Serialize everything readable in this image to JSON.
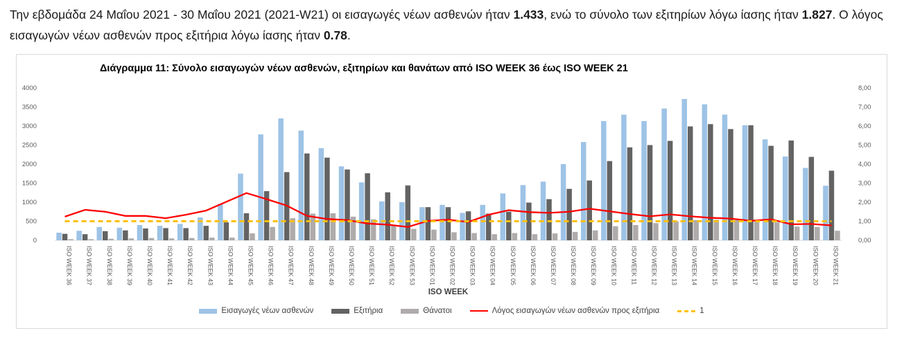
{
  "intro": {
    "p1": "Την εβδομάδα 24 Μαΐου 2021 - 30 Μαΐου 2021 (2021-W21) οι εισαγωγές νέων ασθενών ήταν ",
    "admissions": "1.433",
    "p2": ", ενώ το σύνολο των εξιτηρίων λόγω ίασης ήταν ",
    "discharges": "1.827",
    "p3": ". Ο λόγος εισαγωγών νέων ασθενών προς εξιτήρια λόγω ίασης ήταν ",
    "ratio": "0.78",
    "p4": "."
  },
  "chart_data": {
    "type": "bar",
    "title": "Διάγραμμα 11: Σύνολο εισαγωγών νέων ασθενών, εξιτηρίων και θανάτων από ISO WEEK 36 έως ISO WEEK 21",
    "xlabel": "ISO WEEK",
    "ylim": [
      0,
      4000
    ],
    "y2lim": [
      0,
      8
    ],
    "yticks": [
      "0",
      "500",
      "1000",
      "1500",
      "2000",
      "2500",
      "3000",
      "3500",
      "4000"
    ],
    "y2ticks": [
      "0,00",
      "1,00",
      "2,00",
      "3,00",
      "4,00",
      "5,00",
      "6,00",
      "7,00",
      "8,00"
    ],
    "categories": [
      "ISO WEEK 36",
      "ISO WEEK 37",
      "ISO WEEK 38",
      "ISO WEEK 39",
      "ISO WEEK 40",
      "ISO WEEK 41",
      "ISO WEEK 42",
      "ISO WEEK 43",
      "ISO WEEK 44",
      "ISO WEEK 45",
      "ISO WEEK 46",
      "ISO WEEK 47",
      "ISO WEEK 48",
      "ISO WEEK 49",
      "ISO WEEK 50",
      "ISO WEEK 51",
      "ISO WEEK 52",
      "ISO WEEK 53",
      "ISO WEEK 01",
      "ISO WEEK 02",
      "ISO WEEK 03",
      "ISO WEEK 04",
      "ISO WEEK 05",
      "ISO WEEK 06",
      "ISO WEEK 07",
      "ISO WEEK 08",
      "ISO WEEK 09",
      "ISO WEEK 10",
      "ISO WEEK 11",
      "ISO WEEK 12",
      "ISO WEEK 13",
      "ISO WEEK 14",
      "ISO WEEK 15",
      "ISO WEEK 16",
      "ISO WEEK 17",
      "ISO WEEK 18",
      "ISO WEEK 19",
      "ISO WEEK 20",
      "ISO WEEK 21"
    ],
    "series": [
      {
        "name": "Εισαγωγές νέων ασθενών",
        "axis": "left",
        "kind": "bar",
        "color": "#9dc3e6",
        "values": [
          200,
          250,
          350,
          330,
          400,
          380,
          430,
          600,
          950,
          1750,
          2780,
          3200,
          2880,
          2420,
          1940,
          1520,
          1020,
          1000,
          870,
          930,
          720,
          930,
          1230,
          1450,
          1540,
          2000,
          2580,
          3130,
          3300,
          3130,
          3460,
          3710,
          3570,
          3300,
          3020,
          2650,
          2200,
          1900,
          1433
        ]
      },
      {
        "name": "Εξιτήρια",
        "axis": "left",
        "kind": "bar",
        "color": "#636363",
        "values": [
          170,
          160,
          240,
          260,
          310,
          320,
          320,
          380,
          470,
          710,
          1290,
          1790,
          2280,
          2170,
          1860,
          1760,
          1260,
          1440,
          870,
          870,
          760,
          700,
          750,
          990,
          1080,
          1350,
          1570,
          2080,
          2440,
          2500,
          2610,
          2990,
          3050,
          2920,
          3020,
          2480,
          2620,
          2190,
          1827
        ]
      },
      {
        "name": "Θάνατοι",
        "axis": "left",
        "kind": "bar",
        "color": "#afabab",
        "values": [
          30,
          30,
          40,
          50,
          60,
          50,
          60,
          70,
          70,
          180,
          350,
          580,
          700,
          710,
          620,
          550,
          380,
          300,
          280,
          210,
          190,
          160,
          190,
          160,
          180,
          220,
          260,
          370,
          400,
          450,
          500,
          530,
          540,
          530,
          520,
          470,
          360,
          350,
          250
        ]
      },
      {
        "name": "Λόγος εισαγωγών νέων ασθενών προς εξιτήρια",
        "axis": "right",
        "kind": "line",
        "color": "#ff0000",
        "values": [
          1.24,
          1.6,
          1.5,
          1.28,
          1.28,
          1.16,
          1.34,
          1.56,
          2.02,
          2.48,
          2.16,
          1.82,
          1.28,
          1.12,
          1.06,
          0.88,
          0.82,
          0.7,
          1.02,
          1.08,
          0.96,
          1.34,
          1.58,
          1.48,
          1.44,
          1.5,
          1.66,
          1.52,
          1.38,
          1.26,
          1.36,
          1.26,
          1.18,
          1.14,
          1.02,
          1.1,
          0.84,
          0.86,
          0.78
        ]
      },
      {
        "name": "1",
        "axis": "right",
        "kind": "dashed",
        "color": "#ffc000",
        "values": [
          1,
          1,
          1,
          1,
          1,
          1,
          1,
          1,
          1,
          1,
          1,
          1,
          1,
          1,
          1,
          1,
          1,
          1,
          1,
          1,
          1,
          1,
          1,
          1,
          1,
          1,
          1,
          1,
          1,
          1,
          1,
          1,
          1,
          1,
          1,
          1,
          1,
          1,
          1
        ]
      }
    ]
  },
  "legend": {
    "items": [
      {
        "label": "Εισαγωγές νέων ασθενών",
        "color": "#9dc3e6",
        "style": "bar"
      },
      {
        "label": "Εξιτήρια",
        "color": "#636363",
        "style": "bar"
      },
      {
        "label": "Θάνατοι",
        "color": "#afabab",
        "style": "bar"
      },
      {
        "label": "Λόγος εισαγωγών νέων ασθενών προς εξιτήρια",
        "color": "#ff0000",
        "style": "line"
      },
      {
        "label": "1",
        "color": "#ffc000",
        "style": "dash"
      }
    ]
  }
}
